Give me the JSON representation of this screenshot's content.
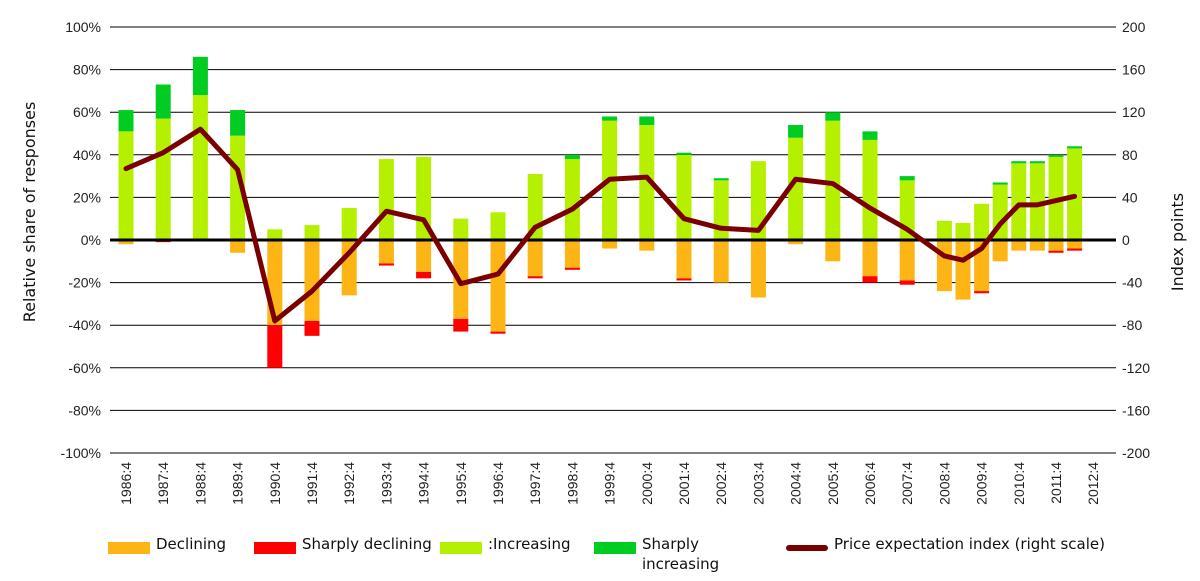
{
  "colors": {
    "declining": "#FDB515",
    "sharply_declining": "#FF0000",
    "increasing": "#B4F000",
    "sharply_increasing": "#00CC22",
    "index": "#7A0000"
  },
  "legend": {
    "declining": "Declining",
    "sharply_declining": "Sharply declining",
    "increasing": ":Increasing",
    "sharply_increasing": "Sharply increasing",
    "index": "Price expectation index (right scale)"
  },
  "chart_data": {
    "type": "bar",
    "stacked": true,
    "ylabel": "Relative share of responses",
    "y2label": "Index points",
    "ylim": [
      -100,
      100
    ],
    "yticks": [
      "100%",
      "80%",
      "60%",
      "40%",
      "20%",
      "0%",
      "-20%",
      "-40%",
      "-60%",
      "-80%",
      "-100%"
    ],
    "y2lim": [
      -200,
      200
    ],
    "y2ticks": [
      "200",
      "160",
      "120",
      "80",
      "40",
      "0",
      "-40",
      "-80",
      "-120",
      "-160",
      "-200"
    ],
    "grid": true,
    "legend_position": "bottom",
    "xtick_labels": [
      "1986:4",
      "1987:4",
      "1988:4",
      "1989:4",
      "1990:4",
      "1991:4",
      "1992:4",
      "1993:4",
      "1994:4",
      "1995:4",
      "1996:4",
      "1997:4",
      "1998:4",
      "1999:4",
      "2000:4",
      "2001:4",
      "2002:4",
      "2003:4",
      "2004:4",
      "2005:4",
      "2006:4",
      "2007:4",
      "2008:4",
      "2009:4",
      "2010:4",
      "2011:4",
      "2012:4"
    ],
    "x_positions": [
      0,
      1,
      2,
      3,
      4,
      5,
      6,
      7,
      8,
      9,
      10,
      11,
      12,
      13,
      14,
      15,
      16,
      17,
      18,
      19,
      20,
      21,
      22,
      22.5,
      23,
      23.5,
      24,
      24.5,
      25,
      25.5
    ],
    "series": [
      {
        "name": "Declining",
        "values": [
          -2,
          0,
          0,
          -6,
          -40,
          -38,
          -26,
          -11,
          -15,
          -37,
          -43,
          -17,
          -13,
          -4,
          -5,
          -18,
          -20,
          -27,
          -2,
          -10,
          -17,
          -19,
          -24,
          -28,
          -24,
          -10,
          -5,
          -5,
          -5,
          -4
        ]
      },
      {
        "name": "Sharply declining",
        "values": [
          0,
          -1,
          0,
          0,
          -20,
          -7,
          0,
          -1,
          -3,
          -6,
          -1,
          -1,
          -1,
          0,
          0,
          -1,
          0,
          0,
          0,
          0,
          -3,
          -2,
          0,
          0,
          -1,
          0,
          0,
          0,
          -1,
          -1
        ]
      },
      {
        "name": "Increasing",
        "values": [
          51,
          57,
          68,
          49,
          5,
          7,
          15,
          38,
          39,
          10,
          13,
          31,
          38,
          56,
          54,
          40,
          28,
          37,
          48,
          56,
          47,
          28,
          9,
          8,
          17,
          26,
          36,
          36,
          39,
          43
        ]
      },
      {
        "name": "Sharply increasing",
        "values": [
          10,
          16,
          18,
          12,
          0,
          0,
          0,
          0,
          0,
          0,
          0,
          0,
          2,
          2,
          4,
          1,
          1,
          0,
          6,
          4,
          4,
          2,
          0,
          0,
          0,
          1,
          1,
          1,
          1,
          1
        ]
      }
    ],
    "index": {
      "name": "Price expectation index (right scale)",
      "axis": "right",
      "values": [
        67,
        82,
        104,
        66,
        -76,
        -48,
        -12,
        27,
        19,
        -41,
        -32,
        12,
        29,
        57,
        59,
        20,
        11,
        9,
        57,
        53,
        30,
        10,
        -15,
        -19,
        -8,
        15,
        33,
        33,
        37,
        41
      ]
    }
  }
}
